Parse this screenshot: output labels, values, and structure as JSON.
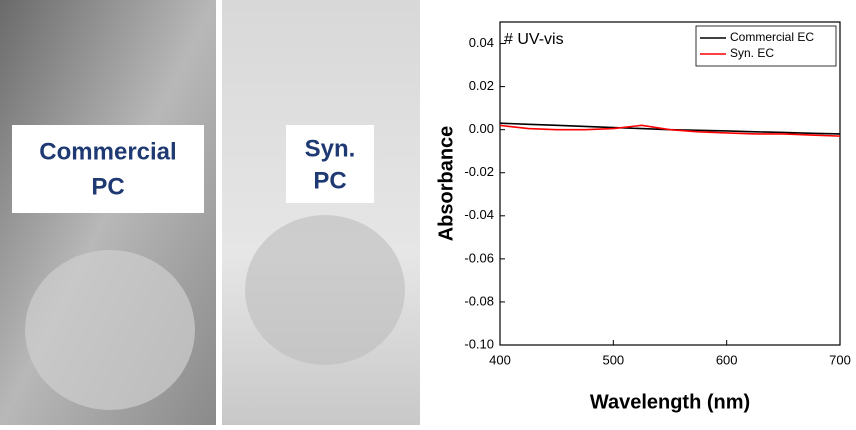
{
  "photos": [
    {
      "lines": [
        "Commercial",
        "PC"
      ]
    },
    {
      "lines": [
        "Syn.",
        "PC"
      ]
    }
  ],
  "chart_data": {
    "type": "line",
    "annotation": "# UV-vis",
    "x_label": "Wavelength (nm)",
    "y_label": "Absorbance",
    "x": [
      400,
      425,
      450,
      475,
      500,
      525,
      550,
      575,
      600,
      625,
      650,
      675,
      700
    ],
    "series": [
      {
        "name": "Commercial EC",
        "color": "#000000",
        "values": [
          0.003,
          0.0025,
          0.002,
          0.0015,
          0.001,
          0.0005,
          0.0,
          -0.0003,
          -0.0006,
          -0.001,
          -0.0013,
          -0.0017,
          -0.002
        ]
      },
      {
        "name": "Syn. EC",
        "color": "#ff0000",
        "values": [
          0.002,
          0.0005,
          0.0,
          0.0,
          0.0005,
          0.002,
          0.0,
          -0.001,
          -0.0015,
          -0.002,
          -0.002,
          -0.0025,
          -0.003
        ]
      }
    ],
    "xlim": [
      400,
      700
    ],
    "xticks": [
      400,
      500,
      600,
      700
    ],
    "ylim": [
      -0.1,
      0.05
    ],
    "yticks": [
      {
        "value": -0.1,
        "label": "-0.10"
      },
      -0.08,
      -0.06,
      -0.04,
      -0.02,
      {
        "value": 0,
        "label": "0.00"
      },
      0.02,
      0.04
    ],
    "legend": "top-right"
  }
}
